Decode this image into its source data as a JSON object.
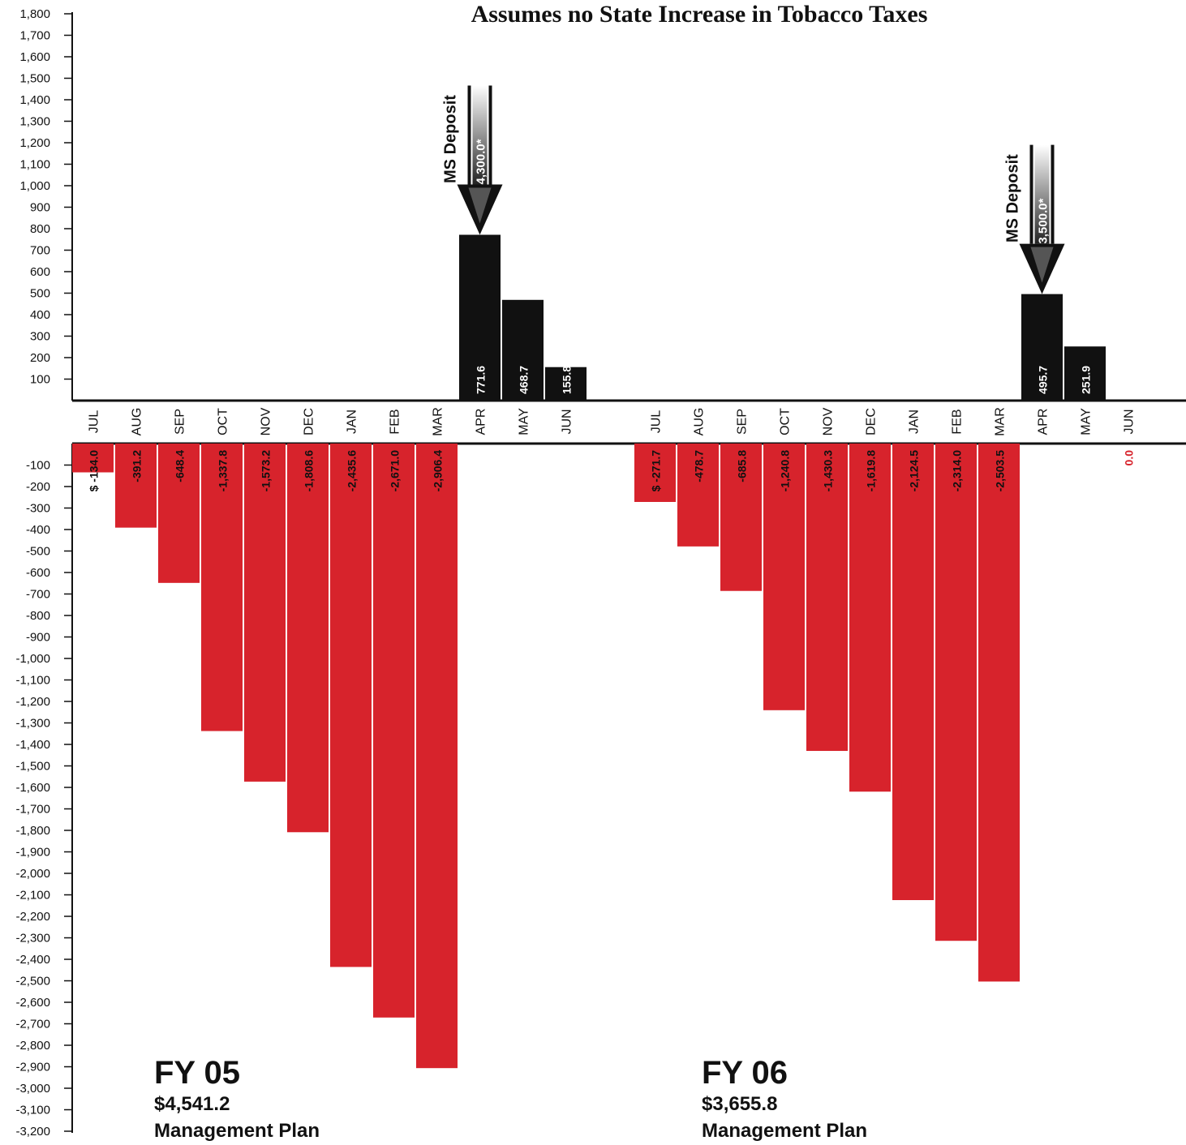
{
  "chart_data": {
    "type": "bar",
    "title": "Assumes no State Increase in Tobacco Taxes",
    "ylim": [
      -3200,
      1800
    ],
    "y_ticks": [
      "1,800",
      "1,700",
      "1,600",
      "1,500",
      "1,400",
      "1,300",
      "1,200",
      "1,100",
      "1,000",
      "900",
      "800",
      "700",
      "600",
      "500",
      "400",
      "300",
      "200",
      "100",
      "-100",
      "-200",
      "-300",
      "-400",
      "-500",
      "-600",
      "-700",
      "-800",
      "-900",
      "-1,000",
      "-1,100",
      "-1,200",
      "-1,300",
      "-1,400",
      "-1,500",
      "-1,600",
      "-1,700",
      "-1,800",
      "-1,900",
      "-2,000",
      "-2,100",
      "-2,200",
      "-2,300",
      "-2,400",
      "-2,500",
      "-2,600",
      "-2,700",
      "-2,800",
      "-2,900",
      "-3,000",
      "-3,100",
      "-3,200"
    ],
    "colors": {
      "negative": "#d7232c",
      "positive": "#111111",
      "zero_label": "#d7232c"
    },
    "panels": [
      {
        "name": "FY 05",
        "amount": "$4,541.2",
        "plan": "Management Plan",
        "categories": [
          "JUL",
          "AUG",
          "SEP",
          "OCT",
          "NOV",
          "DEC",
          "JAN",
          "FEB",
          "MAR",
          "APR",
          "MAY",
          "JUN"
        ],
        "values": [
          -134.0,
          -391.2,
          -648.4,
          -1337.8,
          -1573.2,
          -1808.6,
          -2435.6,
          -2671.0,
          -2906.4,
          771.6,
          468.7,
          155.8
        ],
        "value_labels": [
          "$ -134.0",
          "-391.2",
          "-648.4",
          "-1,337.8",
          "-1,573.2",
          "-1,808.6",
          "-2,435.6",
          "-2,671.0",
          "-2,906.4",
          "771.6",
          "468.7",
          "155.8"
        ],
        "deposit": {
          "label": "MS Deposit",
          "amount": "4,300.0*",
          "month": "APR"
        }
      },
      {
        "name": "FY 06",
        "amount": "$3,655.8",
        "plan": "Management Plan",
        "categories": [
          "JUL",
          "AUG",
          "SEP",
          "OCT",
          "NOV",
          "DEC",
          "JAN",
          "FEB",
          "MAR",
          "APR",
          "MAY",
          "JUN"
        ],
        "values": [
          -271.7,
          -478.7,
          -685.8,
          -1240.8,
          -1430.3,
          -1619.8,
          -2124.5,
          -2314.0,
          -2503.5,
          495.7,
          251.9,
          0.0
        ],
        "value_labels": [
          "$ -271.7",
          "-478.7",
          "-685.8",
          "-1,240.8",
          "-1,430.3",
          "-1,619.8",
          "-2,124.5",
          "-2,314.0",
          "-2,503.5",
          "495.7",
          "251.9",
          "0.0"
        ],
        "deposit": {
          "label": "MS Deposit",
          "amount": "3,500.0*",
          "month": "APR"
        }
      }
    ]
  }
}
